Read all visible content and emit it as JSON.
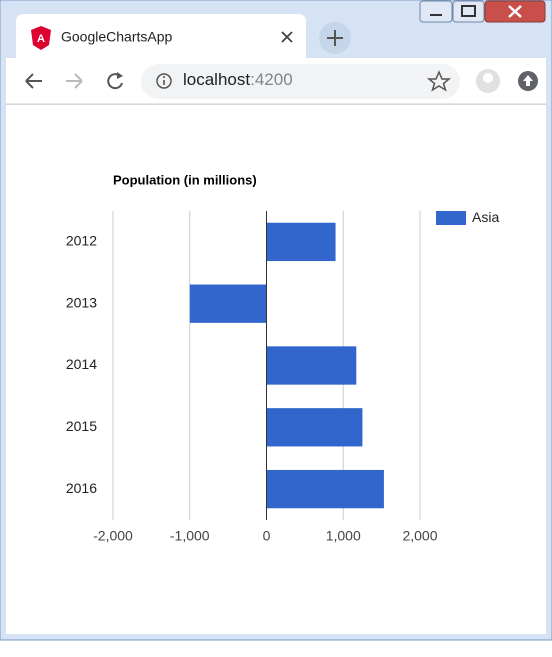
{
  "browser": {
    "tab_title": "GoogleChartsApp",
    "url_host": "localhost",
    "url_port": ":4200"
  },
  "chart_data": {
    "type": "bar",
    "orientation": "horizontal",
    "title": "Population (in millions)",
    "categories": [
      "2012",
      "2013",
      "2014",
      "2015",
      "2016"
    ],
    "series": [
      {
        "name": "Asia",
        "color": "#3366cc",
        "values": [
          900,
          -1000,
          1170,
          1250,
          1530
        ]
      }
    ],
    "xlim": [
      -2000,
      2000
    ],
    "xticks": [
      {
        "value": -2000,
        "label": "-2,000"
      },
      {
        "value": -1000,
        "label": "-1,000"
      },
      0,
      {
        "value": 1000,
        "label": "1,000"
      },
      {
        "value": 2000,
        "label": "2,000"
      }
    ],
    "grid": true,
    "legend": "top-right"
  }
}
